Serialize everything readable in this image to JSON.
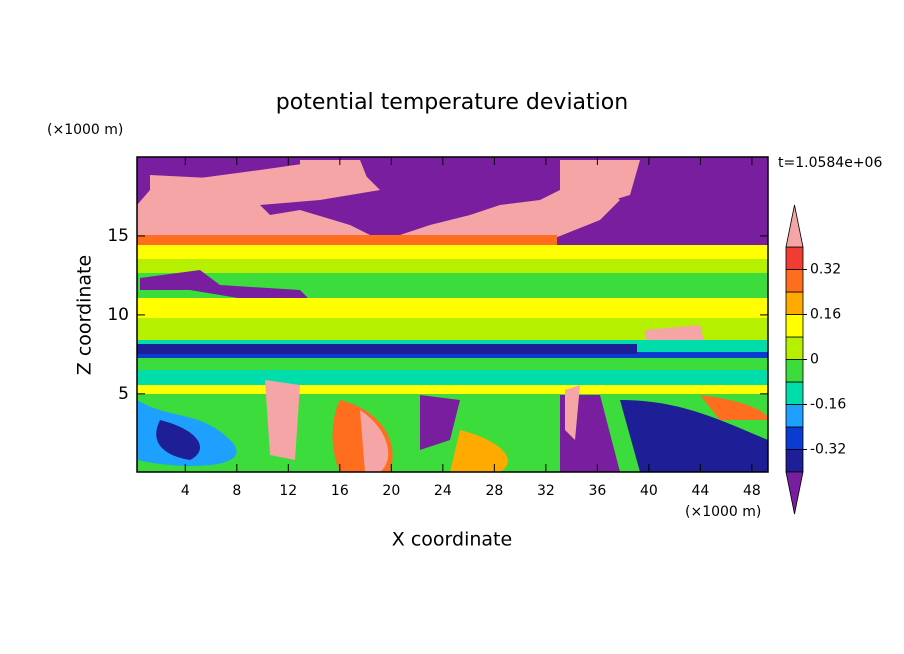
{
  "chart_data": {
    "type": "contour",
    "title": "potential temperature deviation",
    "xlabel": "X coordinate",
    "ylabel": "Z coordinate",
    "x_unit": "(×1000 m)",
    "y_unit": "(×1000 m)",
    "annotation": "t=1.0584e+06",
    "xlim": [
      0.25,
      49.25
    ],
    "ylim": [
      0.05,
      20
    ],
    "xticks": [
      4,
      8,
      12,
      16,
      20,
      24,
      28,
      32,
      36,
      40,
      44,
      48
    ],
    "yticks": [
      5,
      10,
      15
    ],
    "colorbar": {
      "levels": [
        -0.4,
        -0.32,
        -0.24,
        -0.16,
        -0.08,
        0,
        0.08,
        0.16,
        0.24,
        0.32,
        0.4
      ],
      "ticks": [
        -0.32,
        -0.16,
        0,
        0.16,
        0.32
      ],
      "colors": [
        "#7a1ea0",
        "#1e1e96",
        "#0a3cd2",
        "#1ea0ff",
        "#00dcaa",
        "#3cdc3c",
        "#b4f000",
        "#ffff00",
        "#ffaa00",
        "#ff6e1e",
        "#f03c32",
        "#f5a5a5"
      ]
    }
  }
}
